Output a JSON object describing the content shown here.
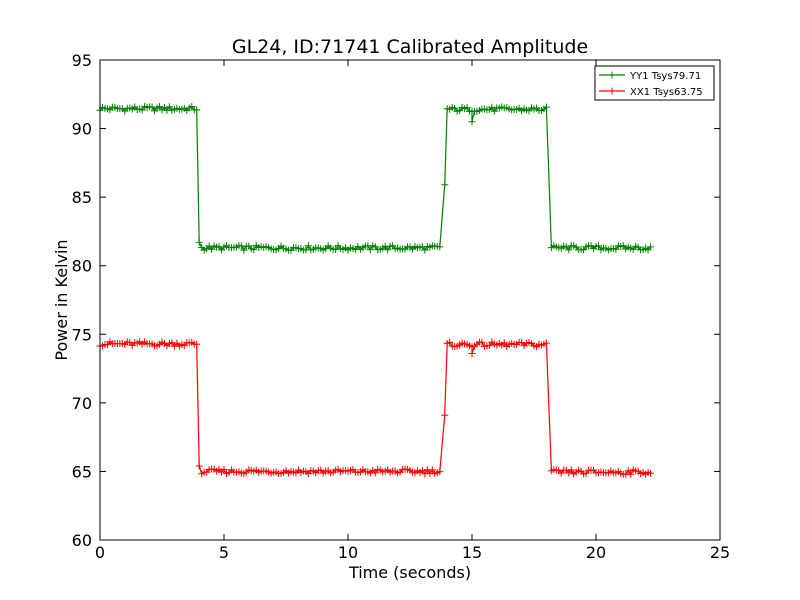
{
  "chart_data": {
    "type": "line",
    "title": "GL24, ID:71741 Calibrated Amplitude",
    "xlabel": "Time (seconds)",
    "ylabel": "Power in Kelvin",
    "xlim": [
      0,
      25
    ],
    "ylim": [
      60,
      95
    ],
    "xticks": [
      "0",
      "5",
      "10",
      "15",
      "20",
      "25"
    ],
    "yticks": [
      "60",
      "65",
      "70",
      "75",
      "80",
      "85",
      "90",
      "95"
    ],
    "grid": false,
    "legend_position": "top-right",
    "marker": "+",
    "series": [
      {
        "name": "YY1 Tsys79.71",
        "color": "#008000",
        "segments": [
          {
            "x_start": 0.0,
            "x_end": 3.9,
            "y": 91.45
          },
          {
            "x_start": 4.1,
            "x_end": 13.7,
            "y": 81.3
          },
          {
            "x_start": 14.0,
            "x_end": 18.0,
            "y": 91.4
          },
          {
            "x_start": 18.2,
            "x_end": 22.2,
            "y": 81.3
          }
        ],
        "extra_points": [
          {
            "x": 4.0,
            "y": 81.7
          },
          {
            "x": 13.9,
            "y": 85.9
          },
          {
            "x": 15.0,
            "y": 90.5
          }
        ]
      },
      {
        "name": "XX1 Tsys63.75",
        "color": "#ff0000",
        "segments": [
          {
            "x_start": 0.0,
            "x_end": 3.9,
            "y": 74.3
          },
          {
            "x_start": 4.1,
            "x_end": 13.7,
            "y": 65.0
          },
          {
            "x_start": 14.0,
            "x_end": 18.0,
            "y": 74.25
          },
          {
            "x_start": 18.2,
            "x_end": 22.2,
            "y": 64.95
          }
        ],
        "extra_points": [
          {
            "x": 4.0,
            "y": 65.4
          },
          {
            "x": 13.9,
            "y": 69.1
          },
          {
            "x": 15.0,
            "y": 73.6
          }
        ]
      }
    ]
  }
}
